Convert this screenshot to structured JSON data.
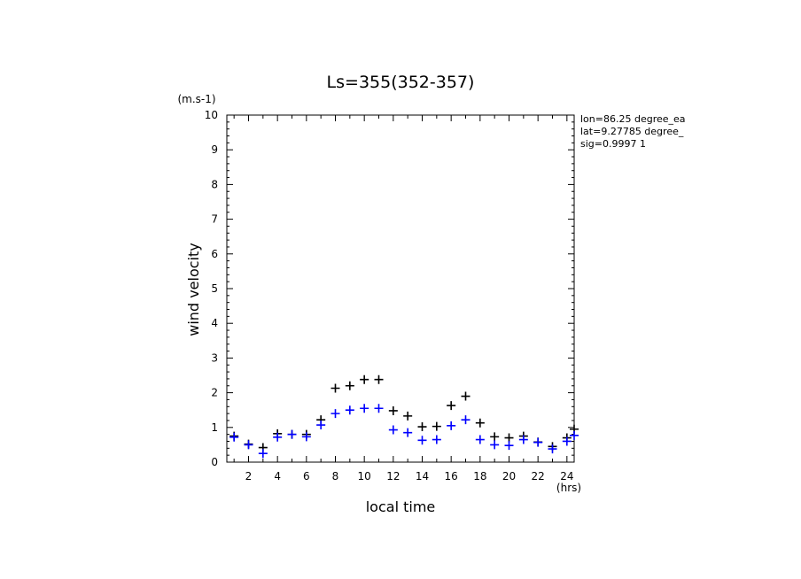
{
  "chart_data": {
    "type": "scatter",
    "title": "Ls=355(352-357)",
    "xlabel": "local time",
    "ylabel": "wind velocity",
    "x_unit": "(hrs)",
    "y_unit": "(m.s-1)",
    "xlim": [
      0.5,
      24.5
    ],
    "ylim": [
      0,
      10
    ],
    "x_ticks": [
      2,
      4,
      6,
      8,
      10,
      12,
      14,
      16,
      18,
      20,
      22,
      24
    ],
    "y_ticks": [
      0,
      1,
      2,
      3,
      4,
      5,
      6,
      7,
      8,
      9,
      10
    ],
    "grid": false,
    "info_lines": [
      "lon=86.25 degree_ea",
      "lat=9.27785 degree_",
      "sig=0.9997 1"
    ],
    "x": [
      1,
      2,
      3,
      4,
      5,
      6,
      7,
      8,
      9,
      10,
      11,
      12,
      13,
      14,
      15,
      16,
      17,
      18,
      19,
      20,
      21,
      22,
      23,
      24,
      24.5
    ],
    "series": [
      {
        "color": "#000000",
        "values": [
          0.75,
          0.52,
          0.42,
          0.82,
          0.8,
          0.8,
          1.22,
          2.13,
          2.2,
          2.38,
          2.38,
          1.48,
          1.33,
          1.02,
          1.03,
          1.63,
          1.9,
          1.13,
          0.73,
          0.7,
          0.75,
          0.58,
          0.45,
          0.7,
          0.95
        ]
      },
      {
        "color": "#0000ff",
        "values": [
          0.72,
          0.5,
          0.25,
          0.72,
          0.8,
          0.73,
          1.07,
          1.4,
          1.5,
          1.55,
          1.55,
          0.93,
          0.85,
          0.63,
          0.65,
          1.05,
          1.22,
          0.65,
          0.5,
          0.48,
          0.65,
          0.57,
          0.38,
          0.6,
          0.77
        ]
      }
    ]
  }
}
